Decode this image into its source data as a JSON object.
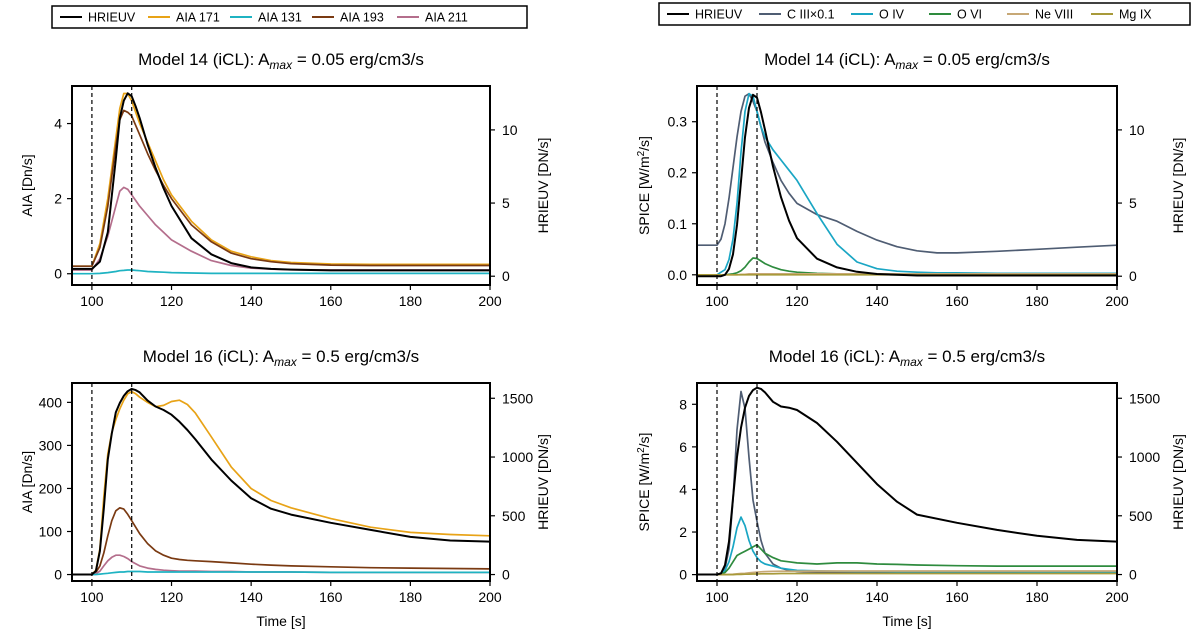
{
  "colors": {
    "HRIEUV": "#000000",
    "AIA 171": "#e8a317",
    "AIA 131": "#1fb3c2",
    "AIA 193": "#7a3a12",
    "AIA 211": "#b46e8c",
    "C III×0.1": "#4f5d73",
    "O IV": "#1aa6c4",
    "O VI": "#2e8b3e",
    "Ne VIII": "#c7a876",
    "Mg IX": "#a89a3a"
  },
  "legends": [
    {
      "entries": [
        "HRIEUV",
        "AIA 171",
        "AIA 131",
        "AIA 193",
        "AIA 211"
      ]
    },
    {
      "entries": [
        "HRIEUV",
        "C III×0.1",
        "O IV",
        "O VI",
        "Ne VIII",
        "Mg IX"
      ]
    }
  ],
  "chart_data": [
    {
      "type": "line",
      "title_prefix": "Model 14 (iCL): A",
      "title_sub": "max",
      "title_suffix": " = 0.05 erg/cm3/s",
      "xlabel": "",
      "ylabel": "AIA [Dn/s]",
      "y2label": "HRIEUV [DN/s]",
      "xlim": [
        95,
        200
      ],
      "ylim": [
        -0.3,
        5.0
      ],
      "y2lim": [
        -0.6,
        13.0
      ],
      "xticks": [
        100,
        120,
        140,
        160,
        180,
        200
      ],
      "yticks": [
        0,
        2,
        4
      ],
      "y2ticks": [
        0,
        5,
        10
      ],
      "vlines": [
        100,
        110
      ],
      "x": [
        95,
        100,
        102,
        104,
        106,
        107,
        108,
        109,
        110,
        111,
        112,
        114,
        116,
        118,
        120,
        125,
        130,
        135,
        140,
        145,
        150,
        160,
        170,
        180,
        190,
        200
      ],
      "series": [
        {
          "name": "AIA 171",
          "axis": "left",
          "values": [
            0.2,
            0.2,
            0.8,
            2.0,
            3.6,
            4.4,
            4.8,
            4.8,
            4.6,
            4.3,
            4.0,
            3.5,
            3.0,
            2.5,
            2.1,
            1.4,
            0.9,
            0.6,
            0.45,
            0.35,
            0.3,
            0.26,
            0.25,
            0.25,
            0.25,
            0.25
          ]
        },
        {
          "name": "AIA 193",
          "axis": "left",
          "values": [
            0.2,
            0.2,
            0.7,
            1.8,
            3.4,
            4.1,
            4.35,
            4.3,
            4.2,
            3.95,
            3.7,
            3.2,
            2.75,
            2.35,
            2.0,
            1.3,
            0.85,
            0.55,
            0.4,
            0.32,
            0.27,
            0.23,
            0.22,
            0.22,
            0.22,
            0.22
          ]
        },
        {
          "name": "AIA 211",
          "axis": "left",
          "values": [
            0.1,
            0.1,
            0.4,
            1.0,
            1.8,
            2.2,
            2.3,
            2.25,
            2.1,
            1.95,
            1.8,
            1.55,
            1.3,
            1.1,
            0.9,
            0.6,
            0.35,
            0.22,
            0.15,
            0.12,
            0.11,
            0.1,
            0.1,
            0.1,
            0.1,
            0.1
          ]
        },
        {
          "name": "AIA 131",
          "axis": "left",
          "values": [
            0.0,
            0.0,
            0.01,
            0.03,
            0.06,
            0.08,
            0.09,
            0.1,
            0.1,
            0.09,
            0.08,
            0.06,
            0.05,
            0.04,
            0.03,
            0.02,
            0.01,
            0.01,
            0.01,
            0.01,
            0.01,
            0.01,
            0.01,
            0.01,
            0.01,
            0.01
          ]
        },
        {
          "name": "HRIEUV",
          "axis": "right",
          "values": [
            0.5,
            0.5,
            1.0,
            3.0,
            8.0,
            10.8,
            12.0,
            12.5,
            12.3,
            11.6,
            10.8,
            9.0,
            7.4,
            6.0,
            4.8,
            2.6,
            1.5,
            0.9,
            0.6,
            0.5,
            0.45,
            0.4,
            0.4,
            0.4,
            0.4,
            0.4
          ]
        }
      ]
    },
    {
      "type": "line",
      "title_prefix": "Model 14 (iCL): A",
      "title_sub": "max",
      "title_suffix": " = 0.05 erg/cm3/s",
      "xlabel": "",
      "ylabel_prefix": "SPICE [W/m",
      "ylabel_sup": "2",
      "ylabel_suffix": "/s]",
      "y2label": "HRIEUV [DN/s]",
      "xlim": [
        95,
        200
      ],
      "ylim": [
        -0.02,
        0.37
      ],
      "y2lim": [
        -0.6,
        13.0
      ],
      "xticks": [
        100,
        120,
        140,
        160,
        180,
        200
      ],
      "yticks": [
        0.0,
        0.1,
        0.2,
        0.3
      ],
      "y2ticks": [
        0,
        5,
        10
      ],
      "vlines": [
        100,
        110
      ],
      "x": [
        95,
        100,
        101,
        102,
        103,
        104,
        105,
        106,
        107,
        108,
        109,
        110,
        111,
        112,
        114,
        116,
        118,
        120,
        125,
        130,
        135,
        140,
        145,
        150,
        155,
        160,
        170,
        180,
        190,
        200
      ],
      "series": [
        {
          "name": "C III×0.1",
          "axis": "left",
          "values": [
            0.058,
            0.058,
            0.07,
            0.1,
            0.15,
            0.21,
            0.27,
            0.32,
            0.35,
            0.355,
            0.34,
            0.32,
            0.29,
            0.26,
            0.22,
            0.185,
            0.16,
            0.14,
            0.118,
            0.105,
            0.085,
            0.068,
            0.055,
            0.047,
            0.043,
            0.043,
            0.046,
            0.05,
            0.054,
            0.058
          ]
        },
        {
          "name": "O IV",
          "axis": "left",
          "values": [
            0.0,
            0.0,
            0.005,
            0.01,
            0.03,
            0.07,
            0.14,
            0.24,
            0.32,
            0.355,
            0.35,
            0.32,
            0.29,
            0.27,
            0.245,
            0.225,
            0.205,
            0.185,
            0.12,
            0.06,
            0.025,
            0.012,
            0.007,
            0.005,
            0.004,
            0.004,
            0.003,
            0.003,
            0.003,
            0.003
          ]
        },
        {
          "name": "O VI",
          "axis": "left",
          "values": [
            0.0,
            0.0,
            0.0,
            0.0,
            0.001,
            0.002,
            0.004,
            0.008,
            0.015,
            0.025,
            0.033,
            0.032,
            0.027,
            0.022,
            0.015,
            0.01,
            0.007,
            0.005,
            0.003,
            0.002,
            0.001,
            0.001,
            0.0,
            0.0,
            0.0,
            0.0,
            0.0,
            0.0,
            0.0,
            0.0
          ]
        },
        {
          "name": "Ne VIII",
          "axis": "left",
          "values": [
            0.0,
            0.0,
            0.0,
            0.0,
            0.0,
            0.0,
            0.0,
            0.001,
            0.001,
            0.002,
            0.002,
            0.002,
            0.002,
            0.002,
            0.002,
            0.002,
            0.002,
            0.002,
            0.002,
            0.002,
            0.002,
            0.002,
            0.002,
            0.002,
            0.002,
            0.002,
            0.002,
            0.002,
            0.002,
            0.002
          ]
        },
        {
          "name": "Mg IX",
          "axis": "left",
          "values": [
            0.0,
            0.0,
            0.0,
            0.0,
            0.0,
            0.0,
            0.0,
            0.0,
            0.0,
            0.0,
            0.0,
            0.0,
            0.0,
            0.0,
            0.0,
            0.0,
            0.0,
            0.0,
            0.0,
            0.0,
            0.0,
            0.0,
            0.0,
            0.0,
            0.0,
            0.0,
            0.0,
            0.0,
            0.0,
            0.0
          ]
        },
        {
          "name": "HRIEUV",
          "axis": "right",
          "values": [
            0.0,
            0.0,
            0.0,
            0.1,
            0.5,
            1.5,
            3.5,
            6.5,
            9.5,
            11.5,
            12.4,
            12.2,
            11.2,
            10.0,
            7.5,
            5.4,
            3.8,
            2.6,
            1.2,
            0.6,
            0.3,
            0.15,
            0.1,
            0.05,
            0.05,
            0.05,
            0.05,
            0.05,
            0.05,
            0.05
          ]
        }
      ]
    },
    {
      "type": "line",
      "title_prefix": "Model 16 (iCL): A",
      "title_sub": "max",
      "title_suffix": " = 0.5 erg/cm3/s",
      "xlabel": "Time [s]",
      "ylabel": "AIA [Dn/s]",
      "y2label": "HRIEUV [DN/s]",
      "xlim": [
        95,
        200
      ],
      "ylim": [
        -15,
        445
      ],
      "y2lim": [
        -55,
        1630
      ],
      "xticks": [
        100,
        120,
        140,
        160,
        180,
        200
      ],
      "yticks": [
        0,
        100,
        200,
        300,
        400
      ],
      "y2ticks": [
        0,
        500,
        1000,
        1500
      ],
      "vlines": [
        100,
        110
      ],
      "x": [
        95,
        100,
        101,
        102,
        103,
        104,
        105,
        106,
        107,
        108,
        109,
        110,
        111,
        112,
        114,
        116,
        118,
        120,
        122,
        124,
        126,
        130,
        135,
        140,
        145,
        150,
        160,
        170,
        180,
        190,
        200
      ],
      "series": [
        {
          "name": "AIA 171",
          "axis": "left",
          "values": [
            0,
            0,
            10,
            60,
            180,
            280,
            330,
            360,
            385,
            405,
            420,
            425,
            420,
            412,
            400,
            390,
            393,
            402,
            405,
            395,
            375,
            320,
            250,
            200,
            172,
            155,
            130,
            110,
            98,
            93,
            90
          ]
        },
        {
          "name": "AIA 193",
          "axis": "left",
          "values": [
            0,
            0,
            5,
            20,
            50,
            90,
            125,
            148,
            155,
            152,
            140,
            125,
            110,
            95,
            72,
            55,
            45,
            38,
            35,
            33,
            32,
            30,
            27,
            24,
            22,
            20,
            18,
            16,
            15,
            14,
            13
          ]
        },
        {
          "name": "AIA 211",
          "axis": "left",
          "values": [
            0,
            0,
            2,
            8,
            20,
            32,
            40,
            45,
            45,
            42,
            37,
            30,
            25,
            20,
            15,
            12,
            10,
            9,
            8,
            8,
            8,
            7,
            7,
            6,
            6,
            6,
            5,
            5,
            5,
            5,
            5
          ]
        },
        {
          "name": "AIA 131",
          "axis": "left",
          "values": [
            0,
            0,
            0,
            1,
            2,
            3,
            4,
            5,
            6,
            6,
            7,
            7,
            7,
            7,
            6,
            6,
            6,
            6,
            6,
            6,
            6,
            6,
            6,
            6,
            6,
            6,
            5,
            5,
            5,
            5,
            5
          ]
        },
        {
          "name": "HRIEUV",
          "axis": "right",
          "values": [
            0,
            0,
            30,
            200,
            560,
            980,
            1200,
            1380,
            1460,
            1520,
            1560,
            1580,
            1570,
            1550,
            1480,
            1430,
            1400,
            1360,
            1300,
            1230,
            1150,
            980,
            800,
            650,
            560,
            510,
            440,
            380,
            320,
            290,
            280
          ]
        }
      ]
    },
    {
      "type": "line",
      "title_prefix": "Model 16 (iCL): A",
      "title_sub": "max",
      "title_suffix": " = 0.5 erg/cm3/s",
      "xlabel": "Time [s]",
      "ylabel_prefix": "SPICE [W/m",
      "ylabel_sup": "2",
      "ylabel_suffix": "/s]",
      "y2label": "HRIEUV [DN/s]",
      "xlim": [
        95,
        200
      ],
      "ylim": [
        -0.3,
        9.0
      ],
      "y2lim": [
        -55,
        1630
      ],
      "xticks": [
        100,
        120,
        140,
        160,
        180,
        200
      ],
      "yticks": [
        0,
        2,
        4,
        6,
        8
      ],
      "y2ticks": [
        0,
        500,
        1000,
        1500
      ],
      "vlines": [
        100,
        110
      ],
      "x": [
        95,
        100,
        101,
        102,
        103,
        104,
        105,
        106,
        107,
        108,
        109,
        110,
        111,
        112,
        114,
        116,
        118,
        120,
        125,
        130,
        135,
        140,
        145,
        150,
        160,
        170,
        180,
        190,
        200
      ],
      "series": [
        {
          "name": "C III×0.1",
          "axis": "left",
          "values": [
            0,
            0,
            0.05,
            0.3,
            1.2,
            3.5,
            6.8,
            8.6,
            7.8,
            5.5,
            3.5,
            2.5,
            1.6,
            1.0,
            0.5,
            0.3,
            0.2,
            0.15,
            0.12,
            0.1,
            0.1,
            0.1,
            0.1,
            0.1,
            0.1,
            0.1,
            0.1,
            0.1,
            0.1
          ]
        },
        {
          "name": "O IV",
          "axis": "left",
          "values": [
            0,
            0,
            0.05,
            0.2,
            0.6,
            1.3,
            2.2,
            2.7,
            2.3,
            1.6,
            1.1,
            0.8,
            0.6,
            0.5,
            0.4,
            0.3,
            0.25,
            0.2,
            0.18,
            0.16,
            0.15,
            0.15,
            0.14,
            0.14,
            0.13,
            0.13,
            0.12,
            0.12,
            0.12
          ]
        },
        {
          "name": "O VI",
          "axis": "left",
          "values": [
            0,
            0,
            0.02,
            0.1,
            0.3,
            0.6,
            0.9,
            1.0,
            1.1,
            1.2,
            1.3,
            1.4,
            1.2,
            1.0,
            0.8,
            0.65,
            0.6,
            0.55,
            0.5,
            0.55,
            0.55,
            0.5,
            0.48,
            0.45,
            0.42,
            0.4,
            0.4,
            0.4,
            0.4
          ]
        },
        {
          "name": "Ne VIII",
          "axis": "left",
          "values": [
            0,
            0,
            0,
            0,
            0.01,
            0.02,
            0.04,
            0.05,
            0.06,
            0.08,
            0.1,
            0.12,
            0.13,
            0.14,
            0.15,
            0.16,
            0.16,
            0.16,
            0.17,
            0.17,
            0.17,
            0.17,
            0.17,
            0.17,
            0.17,
            0.17,
            0.17,
            0.17,
            0.17
          ]
        },
        {
          "name": "Mg IX",
          "axis": "left",
          "values": [
            0,
            0,
            0,
            0,
            0,
            0,
            0.01,
            0.01,
            0.02,
            0.02,
            0.03,
            0.03,
            0.04,
            0.04,
            0.04,
            0.05,
            0.05,
            0.05,
            0.05,
            0.05,
            0.05,
            0.05,
            0.05,
            0.05,
            0.05,
            0.05,
            0.05,
            0.05,
            0.05
          ]
        },
        {
          "name": "HRIEUV",
          "axis": "right",
          "values": [
            0,
            0,
            10,
            80,
            280,
            650,
            1000,
            1250,
            1420,
            1520,
            1570,
            1590,
            1580,
            1550,
            1470,
            1430,
            1420,
            1400,
            1290,
            1130,
            950,
            770,
            620,
            510,
            440,
            380,
            330,
            295,
            280
          ]
        }
      ]
    }
  ]
}
